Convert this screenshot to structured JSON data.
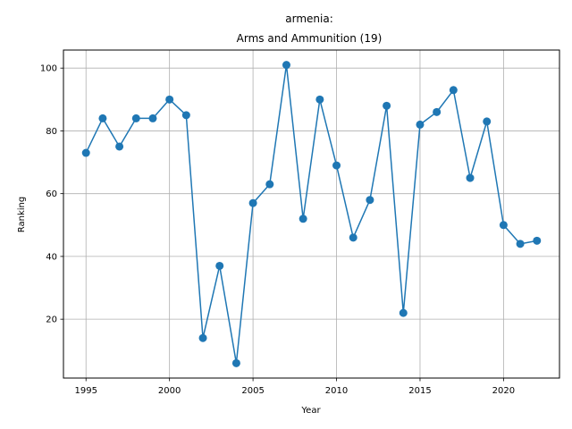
{
  "chart_data": {
    "type": "line",
    "title_line1": "armenia:",
    "title_line2": "Arms and Ammunition (19)",
    "xlabel": "Year",
    "ylabel": "Ranking",
    "xlim": [
      1993.65,
      2023.35
    ],
    "ylim": [
      1.25,
      105.75
    ],
    "xticks": [
      1995,
      2000,
      2005,
      2010,
      2015,
      2020
    ],
    "yticks": [
      20,
      40,
      60,
      80,
      100
    ],
    "grid": true,
    "line_color": "#1f77b4",
    "x": [
      1995,
      1996,
      1997,
      1998,
      1999,
      2000,
      2001,
      2002,
      2003,
      2004,
      2005,
      2006,
      2007,
      2008,
      2009,
      2010,
      2011,
      2012,
      2013,
      2014,
      2015,
      2016,
      2017,
      2018,
      2019,
      2020,
      2021,
      2022
    ],
    "y": [
      73,
      84,
      75,
      84,
      84,
      90,
      85,
      14,
      37,
      6,
      57,
      63,
      101,
      52,
      90,
      69,
      46,
      58,
      88,
      22,
      82,
      86,
      93,
      65,
      83,
      50,
      44,
      45
    ]
  }
}
